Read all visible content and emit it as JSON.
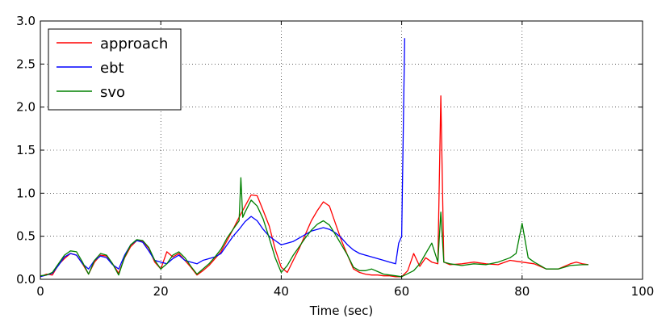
{
  "chart_data": {
    "type": "line",
    "title": "",
    "xlabel": "Time (sec)",
    "ylabel": "",
    "xlim": [
      0,
      100
    ],
    "ylim": [
      0,
      3.0
    ],
    "xticks": [
      0,
      20,
      40,
      60,
      80,
      100
    ],
    "yticks": [
      0.0,
      0.5,
      1.0,
      1.5,
      2.0,
      2.5,
      3.0
    ],
    "xtick_labels": [
      "0",
      "20",
      "40",
      "60",
      "80",
      "100"
    ],
    "ytick_labels": [
      "0.0",
      "0.5",
      "1.0",
      "1.5",
      "2.0",
      "2.5",
      "3.0"
    ],
    "grid": true,
    "legend_position": "top-left",
    "series": [
      {
        "name": "approach",
        "color": "#ff0000",
        "points": [
          [
            0,
            0.03
          ],
          [
            1,
            0.06
          ],
          [
            2,
            0.05
          ],
          [
            3,
            0.17
          ],
          [
            4,
            0.24
          ],
          [
            5,
            0.3
          ],
          [
            6,
            0.28
          ],
          [
            7,
            0.18
          ],
          [
            8,
            0.06
          ],
          [
            9,
            0.2
          ],
          [
            10,
            0.28
          ],
          [
            11,
            0.27
          ],
          [
            12,
            0.18
          ],
          [
            13,
            0.07
          ],
          [
            14,
            0.25
          ],
          [
            15,
            0.38
          ],
          [
            16,
            0.45
          ],
          [
            17,
            0.44
          ],
          [
            18,
            0.36
          ],
          [
            19,
            0.2
          ],
          [
            20,
            0.12
          ],
          [
            21,
            0.32
          ],
          [
            22,
            0.26
          ],
          [
            23,
            0.3
          ],
          [
            24,
            0.22
          ],
          [
            25,
            0.14
          ],
          [
            26,
            0.05
          ],
          [
            27,
            0.1
          ],
          [
            28,
            0.16
          ],
          [
            29,
            0.24
          ],
          [
            30,
            0.32
          ],
          [
            31,
            0.45
          ],
          [
            32,
            0.58
          ],
          [
            33,
            0.72
          ],
          [
            34,
            0.85
          ],
          [
            35,
            0.98
          ],
          [
            36,
            0.97
          ],
          [
            37,
            0.8
          ],
          [
            38,
            0.62
          ],
          [
            39,
            0.35
          ],
          [
            40,
            0.14
          ],
          [
            41,
            0.08
          ],
          [
            42,
            0.22
          ],
          [
            43,
            0.36
          ],
          [
            44,
            0.52
          ],
          [
            45,
            0.68
          ],
          [
            46,
            0.8
          ],
          [
            47,
            0.9
          ],
          [
            48,
            0.85
          ],
          [
            49,
            0.65
          ],
          [
            50,
            0.45
          ],
          [
            51,
            0.28
          ],
          [
            52,
            0.12
          ],
          [
            53,
            0.08
          ],
          [
            54,
            0.06
          ],
          [
            55,
            0.05
          ],
          [
            56,
            0.05
          ],
          [
            57,
            0.04
          ],
          [
            58,
            0.04
          ],
          [
            59,
            0.03
          ],
          [
            60,
            0.03
          ],
          [
            61,
            0.1
          ],
          [
            62,
            0.3
          ],
          [
            63,
            0.15
          ],
          [
            64,
            0.25
          ],
          [
            65,
            0.2
          ],
          [
            66,
            0.18
          ],
          [
            66.5,
            2.13
          ],
          [
            67,
            0.2
          ],
          [
            68,
            0.17
          ],
          [
            70,
            0.18
          ],
          [
            72,
            0.2
          ],
          [
            74,
            0.18
          ],
          [
            76,
            0.17
          ],
          [
            78,
            0.22
          ],
          [
            80,
            0.2
          ],
          [
            82,
            0.18
          ],
          [
            84,
            0.12
          ],
          [
            86,
            0.12
          ],
          [
            88,
            0.18
          ],
          [
            89,
            0.2
          ],
          [
            90,
            0.18
          ],
          [
            91,
            0.17
          ]
        ]
      },
      {
        "name": "ebt",
        "color": "#0000ff",
        "points": [
          [
            0,
            0.03
          ],
          [
            1,
            0.05
          ],
          [
            2,
            0.07
          ],
          [
            3,
            0.16
          ],
          [
            4,
            0.26
          ],
          [
            5,
            0.3
          ],
          [
            6,
            0.28
          ],
          [
            7,
            0.18
          ],
          [
            8,
            0.12
          ],
          [
            9,
            0.22
          ],
          [
            10,
            0.27
          ],
          [
            11,
            0.25
          ],
          [
            12,
            0.17
          ],
          [
            13,
            0.12
          ],
          [
            14,
            0.28
          ],
          [
            15,
            0.4
          ],
          [
            16,
            0.45
          ],
          [
            17,
            0.43
          ],
          [
            18,
            0.33
          ],
          [
            19,
            0.22
          ],
          [
            20,
            0.2
          ],
          [
            21,
            0.18
          ],
          [
            22,
            0.24
          ],
          [
            23,
            0.28
          ],
          [
            24,
            0.22
          ],
          [
            25,
            0.2
          ],
          [
            26,
            0.18
          ],
          [
            27,
            0.22
          ],
          [
            28,
            0.24
          ],
          [
            29,
            0.26
          ],
          [
            30,
            0.3
          ],
          [
            31,
            0.4
          ],
          [
            32,
            0.5
          ],
          [
            33,
            0.58
          ],
          [
            34,
            0.67
          ],
          [
            35,
            0.73
          ],
          [
            36,
            0.68
          ],
          [
            37,
            0.58
          ],
          [
            38,
            0.5
          ],
          [
            39,
            0.45
          ],
          [
            40,
            0.4
          ],
          [
            41,
            0.42
          ],
          [
            42,
            0.44
          ],
          [
            43,
            0.48
          ],
          [
            44,
            0.52
          ],
          [
            45,
            0.56
          ],
          [
            46,
            0.58
          ],
          [
            47,
            0.6
          ],
          [
            48,
            0.58
          ],
          [
            49,
            0.54
          ],
          [
            50,
            0.48
          ],
          [
            51,
            0.4
          ],
          [
            52,
            0.34
          ],
          [
            53,
            0.3
          ],
          [
            54,
            0.28
          ],
          [
            55,
            0.26
          ],
          [
            56,
            0.24
          ],
          [
            57,
            0.22
          ],
          [
            58,
            0.2
          ],
          [
            59,
            0.18
          ],
          [
            59.5,
            0.42
          ],
          [
            60,
            0.5
          ],
          [
            60.5,
            2.8
          ]
        ]
      },
      {
        "name": "svo",
        "color": "#008000",
        "points": [
          [
            0,
            0.04
          ],
          [
            1,
            0.05
          ],
          [
            2,
            0.08
          ],
          [
            3,
            0.18
          ],
          [
            4,
            0.28
          ],
          [
            5,
            0.33
          ],
          [
            6,
            0.32
          ],
          [
            7,
            0.2
          ],
          [
            8,
            0.06
          ],
          [
            9,
            0.22
          ],
          [
            10,
            0.3
          ],
          [
            11,
            0.28
          ],
          [
            12,
            0.18
          ],
          [
            13,
            0.05
          ],
          [
            14,
            0.26
          ],
          [
            15,
            0.4
          ],
          [
            16,
            0.46
          ],
          [
            17,
            0.45
          ],
          [
            18,
            0.37
          ],
          [
            19,
            0.22
          ],
          [
            20,
            0.12
          ],
          [
            21,
            0.18
          ],
          [
            22,
            0.28
          ],
          [
            23,
            0.32
          ],
          [
            24,
            0.25
          ],
          [
            25,
            0.15
          ],
          [
            26,
            0.06
          ],
          [
            27,
            0.12
          ],
          [
            28,
            0.18
          ],
          [
            29,
            0.26
          ],
          [
            30,
            0.35
          ],
          [
            31,
            0.48
          ],
          [
            32,
            0.58
          ],
          [
            33,
            0.68
          ],
          [
            33.3,
            1.18
          ],
          [
            33.6,
            0.72
          ],
          [
            34,
            0.78
          ],
          [
            35,
            0.92
          ],
          [
            36,
            0.85
          ],
          [
            37,
            0.7
          ],
          [
            38,
            0.48
          ],
          [
            39,
            0.25
          ],
          [
            40,
            0.08
          ],
          [
            41,
            0.16
          ],
          [
            42,
            0.28
          ],
          [
            43,
            0.38
          ],
          [
            44,
            0.48
          ],
          [
            45,
            0.57
          ],
          [
            46,
            0.64
          ],
          [
            47,
            0.68
          ],
          [
            48,
            0.63
          ],
          [
            49,
            0.52
          ],
          [
            50,
            0.4
          ],
          [
            51,
            0.28
          ],
          [
            52,
            0.14
          ],
          [
            53,
            0.1
          ],
          [
            54,
            0.1
          ],
          [
            55,
            0.12
          ],
          [
            56,
            0.09
          ],
          [
            57,
            0.06
          ],
          [
            58,
            0.05
          ],
          [
            59,
            0.04
          ],
          [
            60,
            0.03
          ],
          [
            62,
            0.1
          ],
          [
            63,
            0.18
          ],
          [
            64,
            0.3
          ],
          [
            65,
            0.42
          ],
          [
            66,
            0.2
          ],
          [
            66.5,
            0.78
          ],
          [
            67,
            0.2
          ],
          [
            68,
            0.18
          ],
          [
            70,
            0.16
          ],
          [
            72,
            0.18
          ],
          [
            74,
            0.17
          ],
          [
            76,
            0.2
          ],
          [
            78,
            0.25
          ],
          [
            79,
            0.3
          ],
          [
            80,
            0.65
          ],
          [
            81,
            0.25
          ],
          [
            82,
            0.2
          ],
          [
            84,
            0.12
          ],
          [
            86,
            0.12
          ],
          [
            88,
            0.16
          ],
          [
            90,
            0.17
          ],
          [
            91,
            0.17
          ]
        ]
      }
    ]
  }
}
